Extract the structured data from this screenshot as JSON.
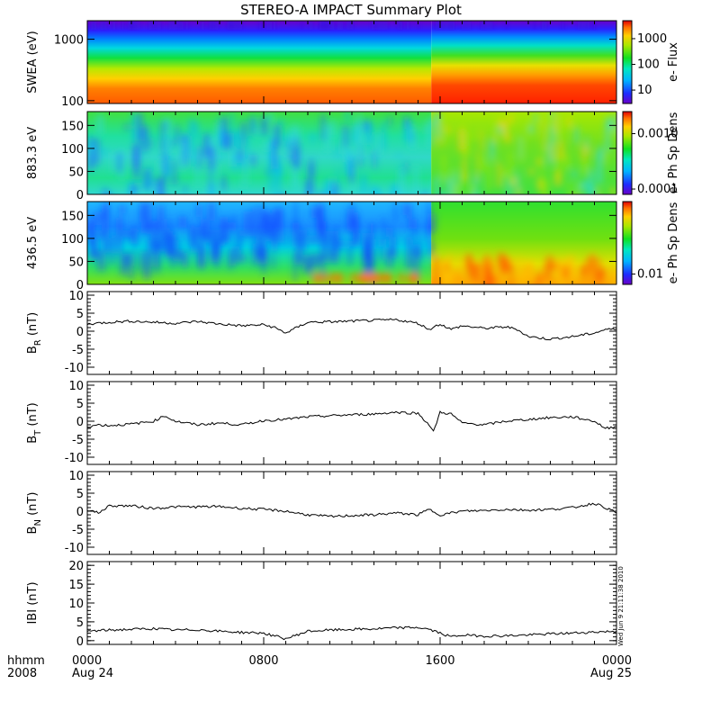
{
  "title": "STEREO-A IMPACT Summary Plot",
  "timestamp": "Wed Jun  9 21:11:38 2010",
  "colors": {
    "line": "#000000",
    "frame": "#000000"
  },
  "x_axis": {
    "unit_label": "hhmm",
    "year_label": "2008",
    "range_hours": [
      0,
      24
    ],
    "ticks": [
      {
        "hour": 0,
        "label": "0000",
        "sublabel": "Aug 24"
      },
      {
        "hour": 8,
        "label": "0800",
        "sublabel": ""
      },
      {
        "hour": 16,
        "label": "1600",
        "sublabel": ""
      },
      {
        "hour": 24,
        "label": "0000",
        "sublabel": "Aug 25"
      }
    ],
    "minor_step_hours": 1
  },
  "chart_data": [
    {
      "type": "heatmap",
      "ylabel": "SWEA (eV)",
      "y_scale": "log",
      "ylim": [
        90,
        2000
      ],
      "yticks": [
        {
          "v": 100,
          "label": "100"
        },
        {
          "v": 1000,
          "label": "1000"
        }
      ],
      "colorbar": {
        "label": "e- Flux",
        "scale": "log",
        "range": [
          3,
          5000
        ],
        "ticks": [
          {
            "v": 10,
            "label": "10"
          },
          {
            "v": 100,
            "label": "100"
          },
          {
            "v": 1000,
            "label": "1000"
          }
        ]
      },
      "description_level": {
        "low_energy": "high flux (orange/red)",
        "high_energy": "low flux (blue/purple)",
        "change_hour": 15.6
      }
    },
    {
      "type": "heatmap",
      "ylabel": "883.3 eV",
      "ylim": [
        0,
        180
      ],
      "yticks": [
        {
          "v": 0,
          "label": "0"
        },
        {
          "v": 50,
          "label": "50"
        },
        {
          "v": 100,
          "label": "100"
        },
        {
          "v": 150,
          "label": "150"
        }
      ],
      "colorbar": {
        "label": "e- Ph Sp Dens",
        "scale": "log",
        "range": [
          8e-05,
          0.0025
        ],
        "ticks": [
          {
            "v": 0.0001,
            "label": "0.0001"
          },
          {
            "v": 0.001,
            "label": "0.0010"
          }
        ]
      }
    },
    {
      "type": "heatmap",
      "ylabel": "436.5 eV",
      "ylim": [
        0,
        180
      ],
      "yticks": [
        {
          "v": 0,
          "label": "0"
        },
        {
          "v": 50,
          "label": "50"
        },
        {
          "v": 100,
          "label": "100"
        },
        {
          "v": 150,
          "label": "150"
        }
      ],
      "colorbar": {
        "label": "e- Ph Sp Dens",
        "scale": "log",
        "range": [
          0.007,
          0.12
        ],
        "ticks": [
          {
            "v": 0.01,
            "label": "0.01"
          }
        ]
      }
    },
    {
      "type": "line",
      "ylabel": "BR",
      "ylabel_main": "B",
      "ylabel_sub": "R",
      "ylabel_unit": " (nT)",
      "ylim": [
        -12,
        11
      ],
      "yticks": [
        {
          "v": -10,
          "label": "-10"
        },
        {
          "v": -5,
          "label": "-5"
        },
        {
          "v": 0,
          "label": "0"
        },
        {
          "v": 5,
          "label": "5"
        },
        {
          "v": 10,
          "label": "10"
        }
      ],
      "x": [
        0,
        1,
        2,
        3,
        4,
        5,
        6,
        7,
        8,
        8.5,
        9,
        9.5,
        10,
        11,
        12,
        13,
        14,
        15,
        15.5,
        16,
        16.5,
        17,
        18,
        19,
        19.5,
        20,
        21,
        22,
        22.5,
        23,
        23.5,
        24
      ],
      "y": [
        2,
        2.5,
        2.8,
        2.5,
        2.2,
        2.7,
        2,
        1.5,
        1.8,
        1.0,
        -0.5,
        1.0,
        2.5,
        2.6,
        2.8,
        3,
        3.2,
        2.2,
        0.5,
        2,
        0.5,
        1.5,
        0.8,
        1.2,
        0.5,
        -1.5,
        -2.2,
        -1.5,
        -1,
        -0.5,
        0.5,
        0.5
      ]
    },
    {
      "type": "line",
      "ylabel": "BT",
      "ylabel_main": "B",
      "ylabel_sub": "T",
      "ylabel_unit": " (nT)",
      "ylim": [
        -12,
        11
      ],
      "yticks": [
        {
          "v": -10,
          "label": "-10"
        },
        {
          "v": -5,
          "label": "-5"
        },
        {
          "v": 0,
          "label": "0"
        },
        {
          "v": 5,
          "label": "5"
        },
        {
          "v": 10,
          "label": "10"
        }
      ],
      "x": [
        0,
        0.5,
        1,
        2,
        3,
        3.5,
        4,
        5,
        6,
        7,
        8,
        9,
        10,
        11,
        12,
        13,
        14,
        15,
        15.5,
        15.7,
        16,
        16.5,
        17,
        18,
        19,
        20,
        21,
        22,
        23,
        23.5,
        24
      ],
      "y": [
        -1.5,
        -1,
        -1.2,
        -0.8,
        0,
        1.5,
        0,
        -1,
        -0.5,
        -1,
        0.2,
        0.5,
        1.2,
        1.5,
        1.8,
        2,
        2.5,
        2.2,
        -1,
        -3,
        2.5,
        2,
        -0.5,
        -1,
        0,
        0.5,
        1,
        1.2,
        0,
        -2,
        -1.5
      ]
    },
    {
      "type": "line",
      "ylabel": "BN",
      "ylabel_main": "B",
      "ylabel_sub": "N",
      "ylabel_unit": " (nT)",
      "ylim": [
        -12,
        11
      ],
      "yticks": [
        {
          "v": -10,
          "label": "-10"
        },
        {
          "v": -5,
          "label": "-5"
        },
        {
          "v": 0,
          "label": "0"
        },
        {
          "v": 5,
          "label": "5"
        },
        {
          "v": 10,
          "label": "10"
        }
      ],
      "x": [
        0,
        0.5,
        1,
        2,
        3,
        4,
        5,
        6,
        7,
        8,
        9,
        10,
        11,
        12,
        13,
        14,
        15,
        15.5,
        16,
        16.5,
        17,
        18,
        19,
        20,
        21,
        22,
        23,
        23.5,
        24
      ],
      "y": [
        0.5,
        -0.5,
        1.5,
        1.5,
        0.8,
        1.2,
        1.2,
        1.3,
        0.8,
        0.5,
        0,
        -1,
        -1.5,
        -1.2,
        -1,
        -0.5,
        -1,
        0.5,
        -1,
        -0.5,
        0,
        0.2,
        0.5,
        0.3,
        0.5,
        1,
        2.2,
        1,
        -0.5
      ]
    },
    {
      "type": "line",
      "ylabel": "|B|",
      "ylabel_main": "IBI",
      "ylabel_sub": "",
      "ylabel_unit": " (nT)",
      "ylim": [
        -1,
        21
      ],
      "yticks": [
        {
          "v": 0,
          "label": "0"
        },
        {
          "v": 5,
          "label": "5"
        },
        {
          "v": 10,
          "label": "10"
        },
        {
          "v": 15,
          "label": "15"
        },
        {
          "v": 20,
          "label": "20"
        }
      ],
      "x": [
        0,
        1,
        2,
        3,
        4,
        5,
        6,
        7,
        8,
        8.5,
        9,
        9.5,
        10,
        11,
        12,
        13,
        14,
        15,
        15.5,
        16,
        16.5,
        17,
        18,
        19,
        20,
        21,
        22,
        23,
        24
      ],
      "y": [
        2.5,
        2.8,
        3,
        3.2,
        2.8,
        2.9,
        2.5,
        2.2,
        2,
        1.2,
        0.5,
        1.5,
        2.5,
        2.8,
        3,
        3.1,
        3.4,
        3.5,
        3,
        2,
        1,
        1.5,
        1.2,
        1.3,
        1.5,
        1.8,
        2,
        2.3,
        2.5
      ]
    }
  ]
}
